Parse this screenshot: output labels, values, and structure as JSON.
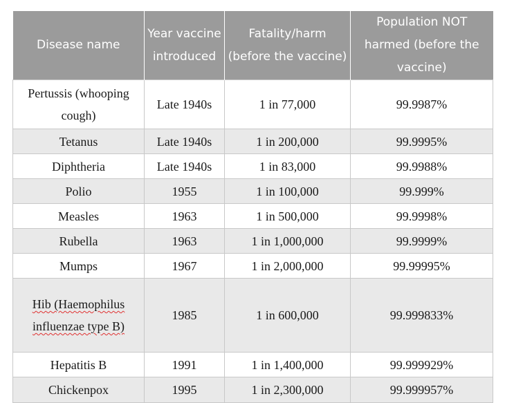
{
  "table": {
    "headers": [
      "Disease name",
      "Year vaccine introduced",
      "Fatality/harm (before the vaccine)",
      "Population NOT harmed (before the vaccine)"
    ],
    "rows": [
      {
        "disease": "Pertussis (whooping cough)",
        "year": "Late 1940s",
        "fatality": "1 in 77,000",
        "not_harmed": "99.9987%"
      },
      {
        "disease": "Tetanus",
        "year": "Late 1940s",
        "fatality": "1 in 200,000",
        "not_harmed": "99.9995%"
      },
      {
        "disease": "Diphtheria",
        "year": "Late 1940s",
        "fatality": "1 in 83,000",
        "not_harmed": "99.9988%"
      },
      {
        "disease": "Polio",
        "year": "1955",
        "fatality": "1 in 100,000",
        "not_harmed": "99.999%"
      },
      {
        "disease": "Measles",
        "year": "1963",
        "fatality": "1 in 500,000",
        "not_harmed": "99.9998%"
      },
      {
        "disease": "Rubella",
        "year": "1963",
        "fatality": "1 in 1,000,000",
        "not_harmed": "99.9999%"
      },
      {
        "disease": "Mumps",
        "year": "1967",
        "fatality": "1 in 2,000,000",
        "not_harmed": "99.99995%"
      },
      {
        "disease": "Hib (Haemophilus influenzae type B)",
        "year": "1985",
        "fatality": "1 in 600,000",
        "not_harmed": "99.999833%"
      },
      {
        "disease": "Hepatitis B",
        "year": "1991",
        "fatality": "1 in 1,400,000",
        "not_harmed": "99.999929%"
      },
      {
        "disease": "Chickenpox",
        "year": "1995",
        "fatality": "1 in 2,300,000",
        "not_harmed": "99.999957%"
      }
    ]
  },
  "colors": {
    "header_bg": "#9b9b9b",
    "header_text": "#ffffff",
    "row_alt_bg": "#e9e9e9",
    "border": "#c8c8c8"
  }
}
